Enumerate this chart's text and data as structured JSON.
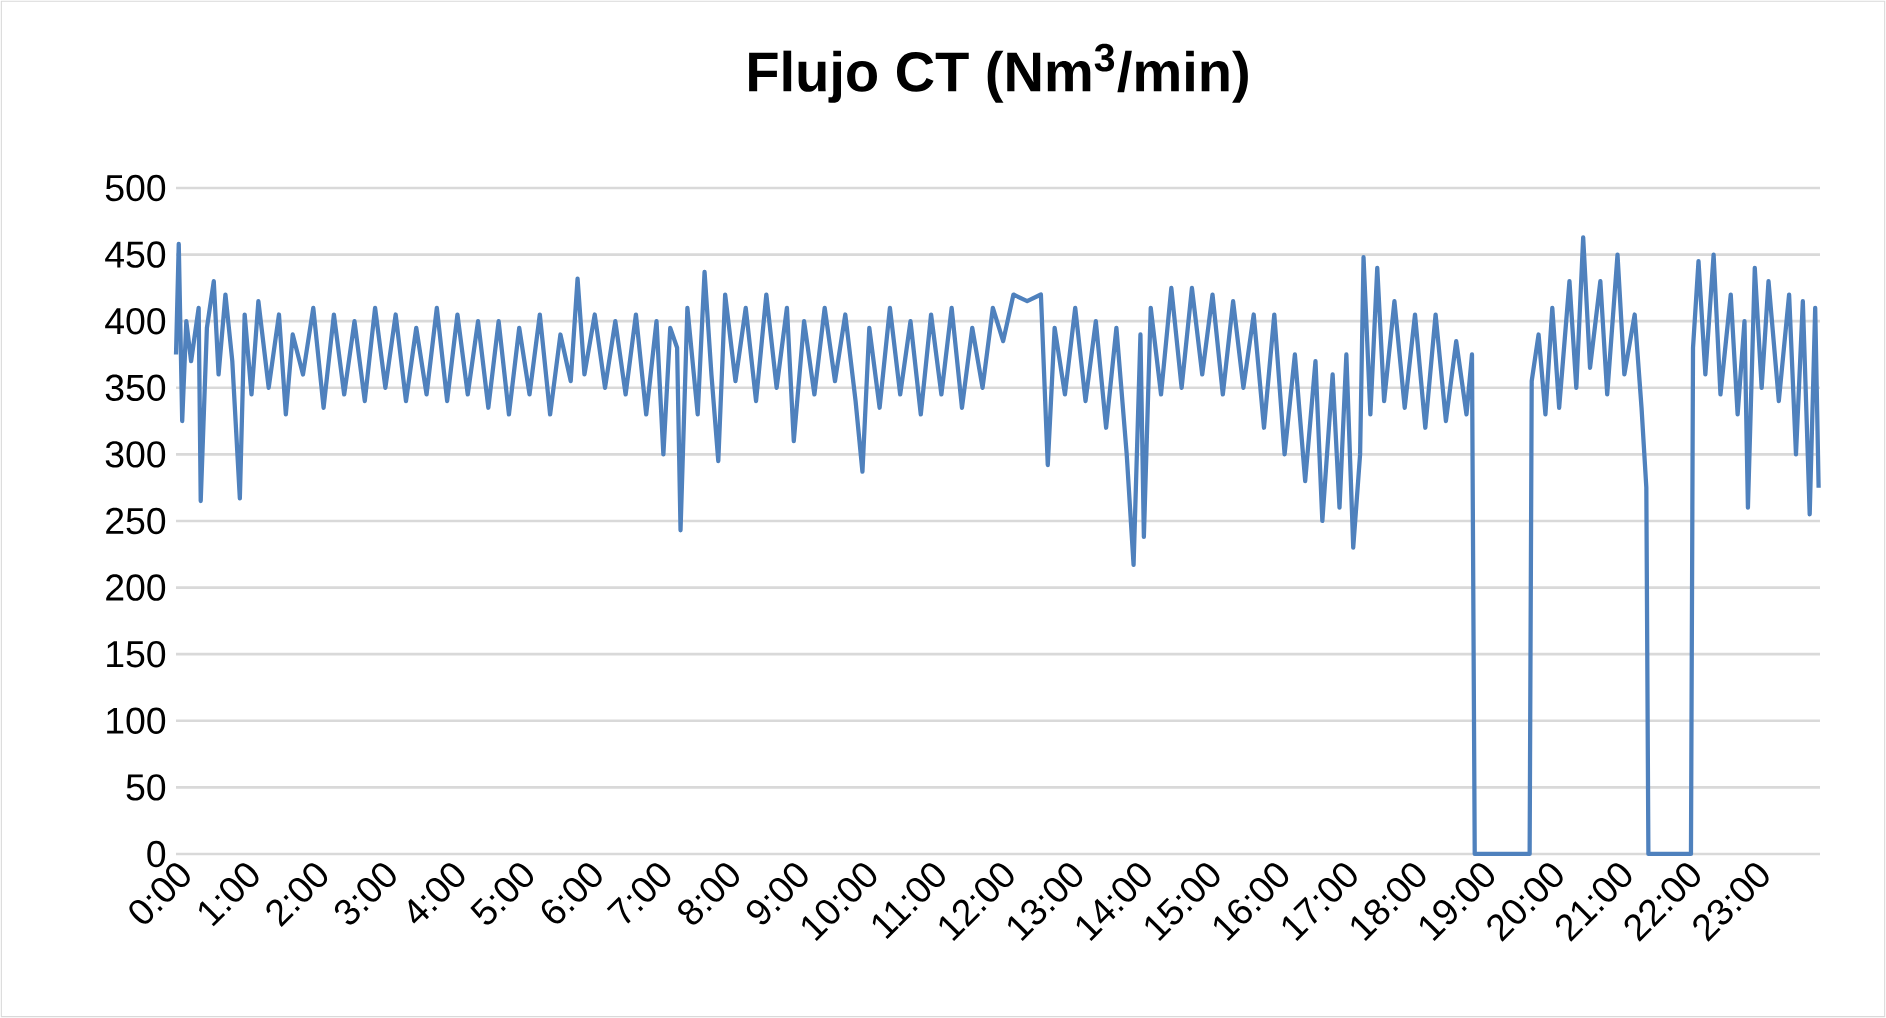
{
  "chart_data": {
    "type": "line",
    "title": "Flujo CT (Nm$^{3}$/min)",
    "xlim": [
      0,
      23.95
    ],
    "ylim": [
      0,
      500
    ],
    "xticks": [
      {
        "value": 0,
        "label": "0:00"
      },
      {
        "value": 1,
        "label": "1:00"
      },
      {
        "value": 2,
        "label": "2:00"
      },
      {
        "value": 3,
        "label": "3:00"
      },
      {
        "value": 4,
        "label": "4:00"
      },
      {
        "value": 5,
        "label": "5:00"
      },
      {
        "value": 6,
        "label": "6:00"
      },
      {
        "value": 7,
        "label": "7:00"
      },
      {
        "value": 8,
        "label": "8:00"
      },
      {
        "value": 9,
        "label": "9:00"
      },
      {
        "value": 10,
        "label": "10:00"
      },
      {
        "value": 11,
        "label": "11:00"
      },
      {
        "value": 12,
        "label": "12:00"
      },
      {
        "value": 13,
        "label": "13:00"
      },
      {
        "value": 14,
        "label": "14:00"
      },
      {
        "value": 15,
        "label": "15:00"
      },
      {
        "value": 16,
        "label": "16:00"
      },
      {
        "value": 17,
        "label": "17:00"
      },
      {
        "value": 18,
        "label": "18:00"
      },
      {
        "value": 19,
        "label": "19:00"
      },
      {
        "value": 20,
        "label": "20:00"
      },
      {
        "value": 21,
        "label": "21:00"
      },
      {
        "value": 22,
        "label": "22:00"
      },
      {
        "value": 23,
        "label": "23:00"
      }
    ],
    "yticks": [
      0,
      50,
      100,
      150,
      200,
      250,
      300,
      350,
      400,
      450,
      500
    ],
    "grid": "y",
    "marker": "none",
    "line_style": "solid",
    "series": [
      {
        "color": "#4f81bd",
        "x": [
          0.0,
          0.04,
          0.09,
          0.15,
          0.22,
          0.33,
          0.36,
          0.45,
          0.55,
          0.62,
          0.72,
          0.82,
          0.93,
          1.0,
          1.1,
          1.2,
          1.35,
          1.5,
          1.6,
          1.7,
          1.85,
          2.0,
          2.15,
          2.3,
          2.45,
          2.6,
          2.75,
          2.9,
          3.05,
          3.2,
          3.35,
          3.5,
          3.65,
          3.8,
          3.95,
          4.1,
          4.25,
          4.4,
          4.55,
          4.7,
          4.85,
          5.0,
          5.15,
          5.3,
          5.45,
          5.6,
          5.75,
          5.85,
          5.95,
          6.1,
          6.25,
          6.4,
          6.55,
          6.7,
          6.85,
          7.0,
          7.1,
          7.2,
          7.3,
          7.35,
          7.45,
          7.6,
          7.7,
          7.8,
          7.9,
          8.0,
          8.15,
          8.3,
          8.45,
          8.6,
          8.75,
          8.9,
          9.0,
          9.15,
          9.3,
          9.45,
          9.6,
          9.75,
          9.9,
          10.0,
          10.1,
          10.25,
          10.4,
          10.55,
          10.7,
          10.85,
          11.0,
          11.15,
          11.3,
          11.45,
          11.6,
          11.75,
          11.9,
          12.05,
          12.2,
          12.4,
          12.6,
          12.7,
          12.8,
          12.95,
          13.1,
          13.25,
          13.4,
          13.55,
          13.7,
          13.85,
          13.95,
          14.05,
          14.1,
          14.2,
          14.35,
          14.5,
          14.65,
          14.8,
          14.95,
          15.1,
          15.25,
          15.4,
          15.55,
          15.7,
          15.85,
          16.0,
          16.15,
          16.3,
          16.45,
          16.6,
          16.7,
          16.85,
          16.95,
          17.05,
          17.15,
          17.25,
          17.3,
          17.4,
          17.5,
          17.6,
          17.75,
          17.9,
          18.05,
          18.2,
          18.35,
          18.5,
          18.65,
          18.8,
          18.88,
          18.92,
          19.72,
          19.75,
          19.85,
          19.95,
          20.05,
          20.15,
          20.3,
          20.4,
          20.5,
          20.6,
          20.75,
          20.85,
          21.0,
          21.1,
          21.25,
          21.35,
          21.42,
          21.45,
          22.07,
          22.1,
          22.18,
          22.28,
          22.4,
          22.5,
          22.65,
          22.75,
          22.85,
          22.9,
          23.0,
          23.1,
          23.2,
          23.35,
          23.5,
          23.6,
          23.7,
          23.8,
          23.88,
          23.93
        ],
        "values": [
          375,
          458,
          325,
          400,
          370,
          410,
          265,
          395,
          430,
          360,
          420,
          370,
          267,
          405,
          345,
          415,
          350,
          405,
          330,
          390,
          360,
          410,
          335,
          405,
          345,
          400,
          340,
          410,
          350,
          405,
          340,
          395,
          345,
          410,
          340,
          405,
          345,
          400,
          335,
          400,
          330,
          395,
          345,
          405,
          330,
          390,
          355,
          432,
          360,
          405,
          350,
          400,
          345,
          405,
          330,
          400,
          300,
          395,
          380,
          243,
          410,
          330,
          437,
          360,
          295,
          420,
          355,
          410,
          340,
          420,
          350,
          410,
          310,
          400,
          345,
          410,
          355,
          405,
          340,
          287,
          395,
          335,
          410,
          345,
          400,
          330,
          405,
          345,
          410,
          335,
          395,
          350,
          410,
          385,
          420,
          415,
          420,
          292,
          395,
          345,
          410,
          340,
          400,
          320,
          395,
          300,
          217,
          390,
          238,
          410,
          345,
          425,
          350,
          425,
          360,
          420,
          345,
          415,
          350,
          405,
          320,
          405,
          300,
          375,
          280,
          370,
          250,
          360,
          260,
          375,
          230,
          300,
          448,
          330,
          440,
          340,
          415,
          335,
          405,
          320,
          405,
          325,
          385,
          330,
          375,
          0,
          0,
          355,
          390,
          330,
          410,
          335,
          430,
          350,
          463,
          365,
          430,
          345,
          450,
          360,
          405,
          335,
          275,
          0,
          0,
          380,
          445,
          360,
          450,
          345,
          420,
          330,
          400,
          260,
          440,
          350,
          430,
          340,
          420,
          300,
          415,
          255,
          410,
          275
        ]
      }
    ]
  }
}
